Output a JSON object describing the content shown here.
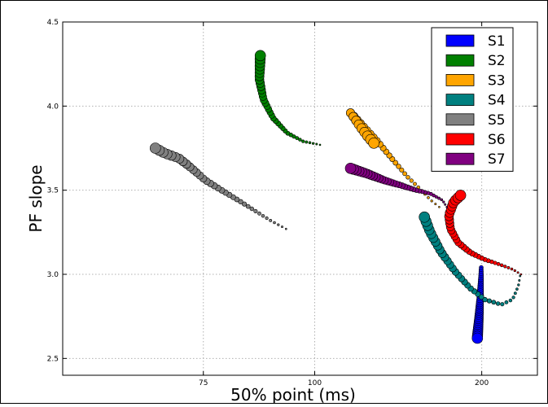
{
  "chart_data": {
    "type": "scatter",
    "xlabel": "50% point (ms)",
    "ylabel": "PF slope",
    "x_scale": "reciprocal",
    "xlim": [
      57,
      300
    ],
    "ylim": [
      2.4,
      4.5
    ],
    "x_ticks": [
      75,
      100,
      200
    ],
    "x_tick_labels": [
      "75",
      "100",
      "200"
    ],
    "y_ticks": [
      2.5,
      3.0,
      3.5,
      4.0,
      4.5
    ],
    "y_tick_labels": [
      "2.5",
      "3.0",
      "3.5",
      "4.0",
      "4.5"
    ],
    "grid": true,
    "legend_position": "top-right",
    "series": [
      {
        "name": "S1",
        "color": "#0000ff",
        "points": [
          [
            194.9,
            2.62
          ],
          [
            196.7,
            2.74
          ],
          [
            198.2,
            2.86
          ],
          [
            199.1,
            2.98
          ],
          [
            199.4,
            3.04
          ]
        ],
        "size_start": 13,
        "size_end": 5
      },
      {
        "name": "S2",
        "color": "#008000",
        "points": [
          [
            86.0,
            4.3
          ],
          [
            85.8,
            4.16
          ],
          [
            86.7,
            4.04
          ],
          [
            88.9,
            3.93
          ],
          [
            92.4,
            3.84
          ],
          [
            96.7,
            3.79
          ],
          [
            101.6,
            3.77
          ]
        ],
        "size_start": 13,
        "size_end": 2
      },
      {
        "name": "S3",
        "color": "#ffa500",
        "points": [
          [
            121.5,
            3.78
          ],
          [
            118.9,
            3.82
          ],
          [
            116.2,
            3.87
          ],
          [
            113.4,
            3.93
          ],
          [
            112.0,
            3.96
          ],
          [
            122.6,
            3.8
          ],
          [
            129.9,
            3.69
          ],
          [
            138.4,
            3.58
          ],
          [
            145.8,
            3.51
          ],
          [
            153.3,
            3.44
          ],
          [
            159.4,
            3.4
          ]
        ],
        "size_start": 13,
        "size_end": 2
      },
      {
        "name": "S4",
        "color": "#008080",
        "points": [
          [
            148.9,
            3.34
          ],
          [
            152.9,
            3.25
          ],
          [
            161.1,
            3.13
          ],
          [
            172.1,
            3.02
          ],
          [
            186.6,
            2.92
          ],
          [
            203.7,
            2.85
          ],
          [
            226.6,
            2.82
          ],
          [
            245.2,
            2.85
          ],
          [
            256.1,
            2.93
          ],
          [
            259.6,
            2.99
          ]
        ],
        "size_start": 13,
        "size_end": 2
      },
      {
        "name": "S5",
        "color": "#808080",
        "points": [
          [
            67.7,
            3.75
          ],
          [
            69.0,
            3.72
          ],
          [
            71.1,
            3.69
          ],
          [
            73.1,
            3.63
          ],
          [
            75.3,
            3.56
          ],
          [
            78.2,
            3.5
          ],
          [
            81.4,
            3.44
          ],
          [
            84.7,
            3.38
          ],
          [
            88.3,
            3.32
          ],
          [
            92.1,
            3.27
          ]
        ],
        "size_start": 13,
        "size_end": 2
      },
      {
        "name": "S6",
        "color": "#ff0000",
        "points": [
          [
            177.5,
            3.47
          ],
          [
            171.2,
            3.43
          ],
          [
            167.1,
            3.35
          ],
          [
            168.5,
            3.27
          ],
          [
            175.0,
            3.19
          ],
          [
            187.0,
            3.13
          ],
          [
            202.5,
            3.09
          ],
          [
            223.0,
            3.06
          ],
          [
            245.2,
            3.03
          ],
          [
            261.4,
            3.0
          ]
        ],
        "size_start": 13,
        "size_end": 2
      },
      {
        "name": "S7",
        "color": "#800080",
        "points": [
          [
            112.0,
            3.63
          ],
          [
            118.3,
            3.6
          ],
          [
            126.1,
            3.56
          ],
          [
            134.4,
            3.53
          ],
          [
            143.7,
            3.5
          ],
          [
            152.9,
            3.48
          ],
          [
            162.0,
            3.44
          ],
          [
            165.4,
            3.4
          ]
        ],
        "size_start": 13,
        "size_end": 2
      }
    ]
  }
}
